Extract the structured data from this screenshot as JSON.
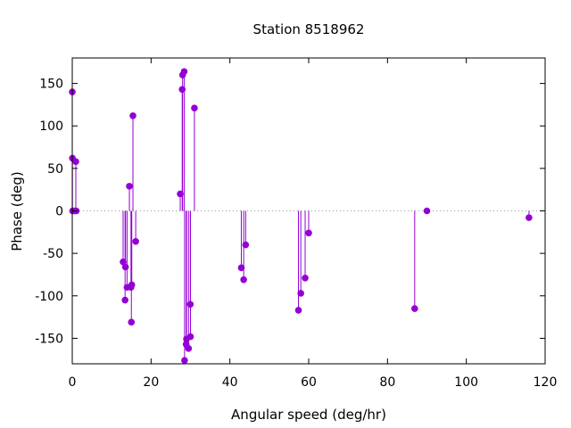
{
  "chart_data": {
    "type": "scatter",
    "style": "impulses-with-points",
    "title": "Station 8518962",
    "xlabel": "Angular speed (deg/hr)",
    "ylabel": "Phase (deg)",
    "xlim": [
      0,
      120
    ],
    "ylim": [
      -180,
      180
    ],
    "xticks": [
      0,
      20,
      40,
      60,
      80,
      100,
      120
    ],
    "yticks": [
      -150,
      -100,
      -50,
      0,
      50,
      100,
      150
    ],
    "zero_line": "dotted",
    "grid": false,
    "series": [
      {
        "color": "#9400d3",
        "points": [
          {
            "x": 0.0,
            "y": 140
          },
          {
            "x": 0.04,
            "y": 62
          },
          {
            "x": 0.08,
            "y": 0
          },
          {
            "x": 0.5,
            "y": 0
          },
          {
            "x": 0.9,
            "y": 58
          },
          {
            "x": 1.0,
            "y": 0
          },
          {
            "x": 12.9,
            "y": -60
          },
          {
            "x": 13.4,
            "y": -105
          },
          {
            "x": 13.5,
            "y": -66
          },
          {
            "x": 13.9,
            "y": -90
          },
          {
            "x": 14.5,
            "y": 29
          },
          {
            "x": 14.9,
            "y": -90
          },
          {
            "x": 15.0,
            "y": -131
          },
          {
            "x": 15.1,
            "y": -87
          },
          {
            "x": 15.4,
            "y": 112
          },
          {
            "x": 16.1,
            "y": -36
          },
          {
            "x": 27.4,
            "y": 20
          },
          {
            "x": 27.9,
            "y": 143
          },
          {
            "x": 28.0,
            "y": 160
          },
          {
            "x": 28.4,
            "y": 164
          },
          {
            "x": 28.5,
            "y": -176
          },
          {
            "x": 28.9,
            "y": -157
          },
          {
            "x": 29.0,
            "y": -151
          },
          {
            "x": 29.5,
            "y": -162
          },
          {
            "x": 29.96,
            "y": -110
          },
          {
            "x": 30.0,
            "y": -148
          },
          {
            "x": 31.0,
            "y": 121
          },
          {
            "x": 42.9,
            "y": -67
          },
          {
            "x": 43.5,
            "y": -81
          },
          {
            "x": 44.0,
            "y": -40
          },
          {
            "x": 57.4,
            "y": -117
          },
          {
            "x": 58.0,
            "y": -97
          },
          {
            "x": 59.1,
            "y": -79
          },
          {
            "x": 60.0,
            "y": -26
          },
          {
            "x": 86.9,
            "y": -115
          },
          {
            "x": 90.0,
            "y": 0
          },
          {
            "x": 115.9,
            "y": -8
          }
        ]
      }
    ]
  }
}
